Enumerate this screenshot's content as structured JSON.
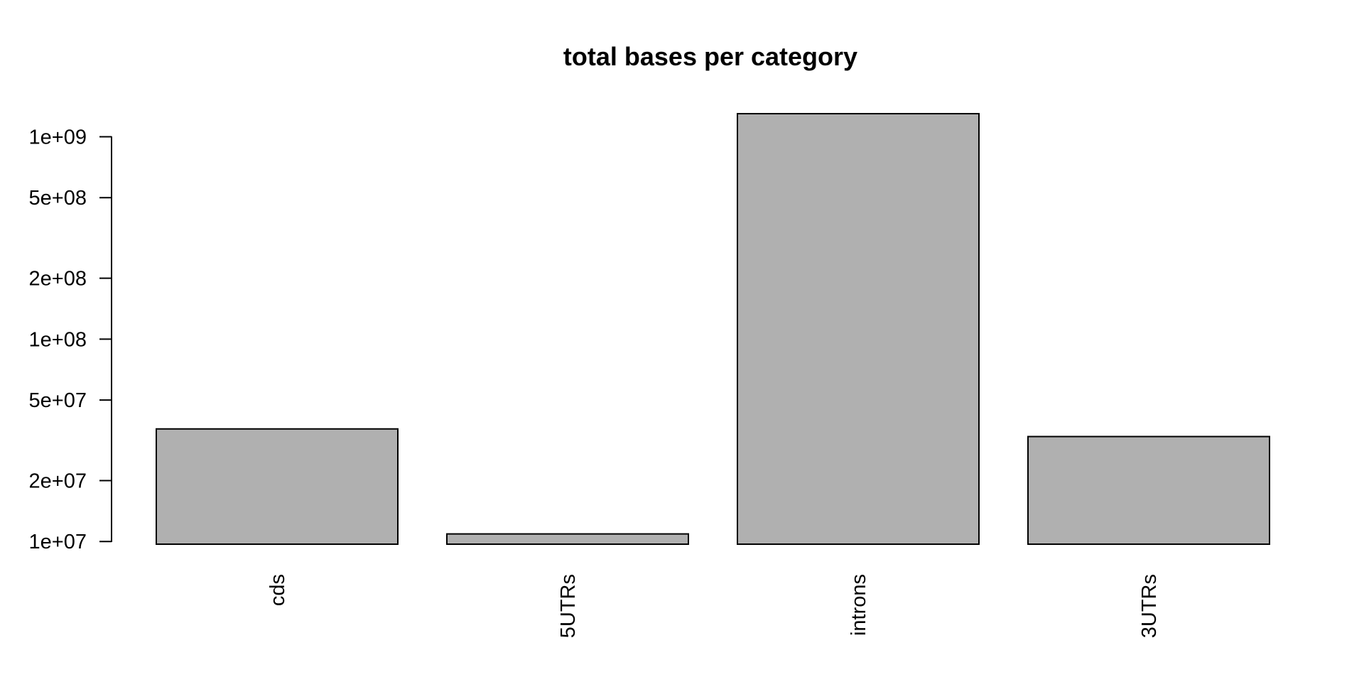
{
  "chart_data": {
    "type": "bar",
    "title": "total bases per category",
    "xlabel": "",
    "ylabel": "",
    "y_scale": "log",
    "y_ticks": [
      10000000,
      20000000,
      50000000,
      100000000,
      200000000,
      500000000,
      1000000000
    ],
    "y_tick_labels": [
      "1e+07",
      "2e+07",
      "5e+07",
      "1e+08",
      "2e+08",
      "5e+08",
      "1e+09"
    ],
    "ylim": [
      9700000,
      1300000000
    ],
    "categories": [
      "cds",
      "5UTRs",
      "introns",
      "3UTRs"
    ],
    "values": [
      36000000,
      10900000,
      1300000000,
      33000000
    ],
    "bar_color": "#b0b0b0",
    "grid": false
  }
}
